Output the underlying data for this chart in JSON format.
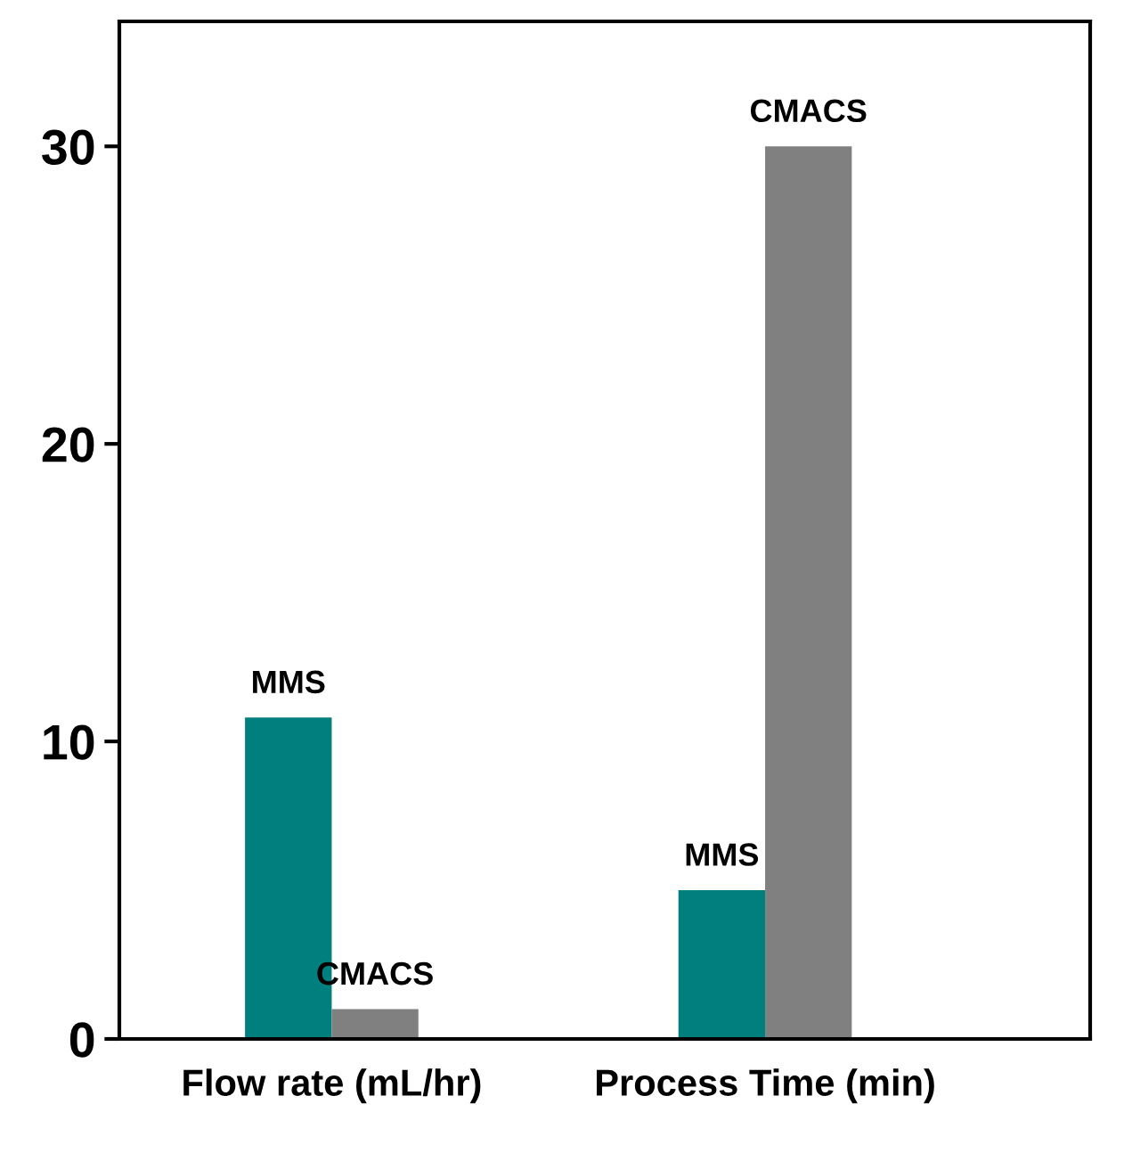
{
  "chart_data": {
    "type": "bar",
    "categories": [
      "Flow rate (mL/hr)",
      "Process Time (min)"
    ],
    "series": [
      {
        "name": "MMS",
        "color": "#007f7f",
        "values": [
          10.8,
          5
        ]
      },
      {
        "name": "CMACS",
        "color": "#808080",
        "values": [
          1,
          30
        ]
      }
    ],
    "ylim": [
      0,
      34.2
    ],
    "yticks": [
      0,
      10,
      20,
      30
    ],
    "grid": false,
    "legend": false
  }
}
